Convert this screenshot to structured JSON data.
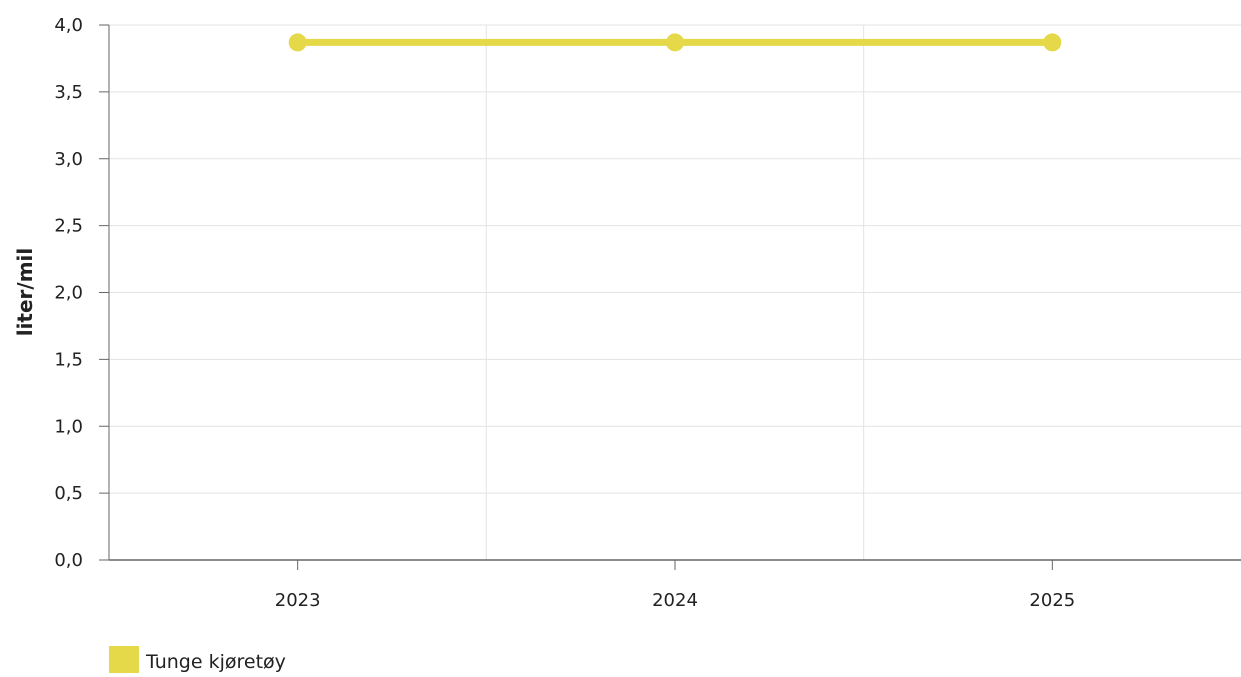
{
  "chart_data": {
    "type": "line",
    "title": "",
    "xlabel": "",
    "ylabel": "liter/mil",
    "categories": [
      "2023",
      "2024",
      "2025"
    ],
    "series": [
      {
        "name": "Tunge kjøretøy",
        "values": [
          3.87,
          3.87,
          3.87
        ],
        "color": "#e5d94a"
      }
    ],
    "ylim": [
      0,
      4
    ],
    "yticks": [
      0,
      0.5,
      1,
      1.5,
      2,
      2.5,
      3,
      3.5,
      4
    ],
    "ytick_labels": [
      "0,0",
      "0,5",
      "1,0",
      "1,5",
      "2,0",
      "2,5",
      "3,0",
      "3,5",
      "4,0"
    ],
    "grid": true,
    "legend_position": "bottom-left"
  },
  "colors": {
    "grid": "#e3e3e3",
    "axis": "#666666",
    "text": "#222222"
  }
}
